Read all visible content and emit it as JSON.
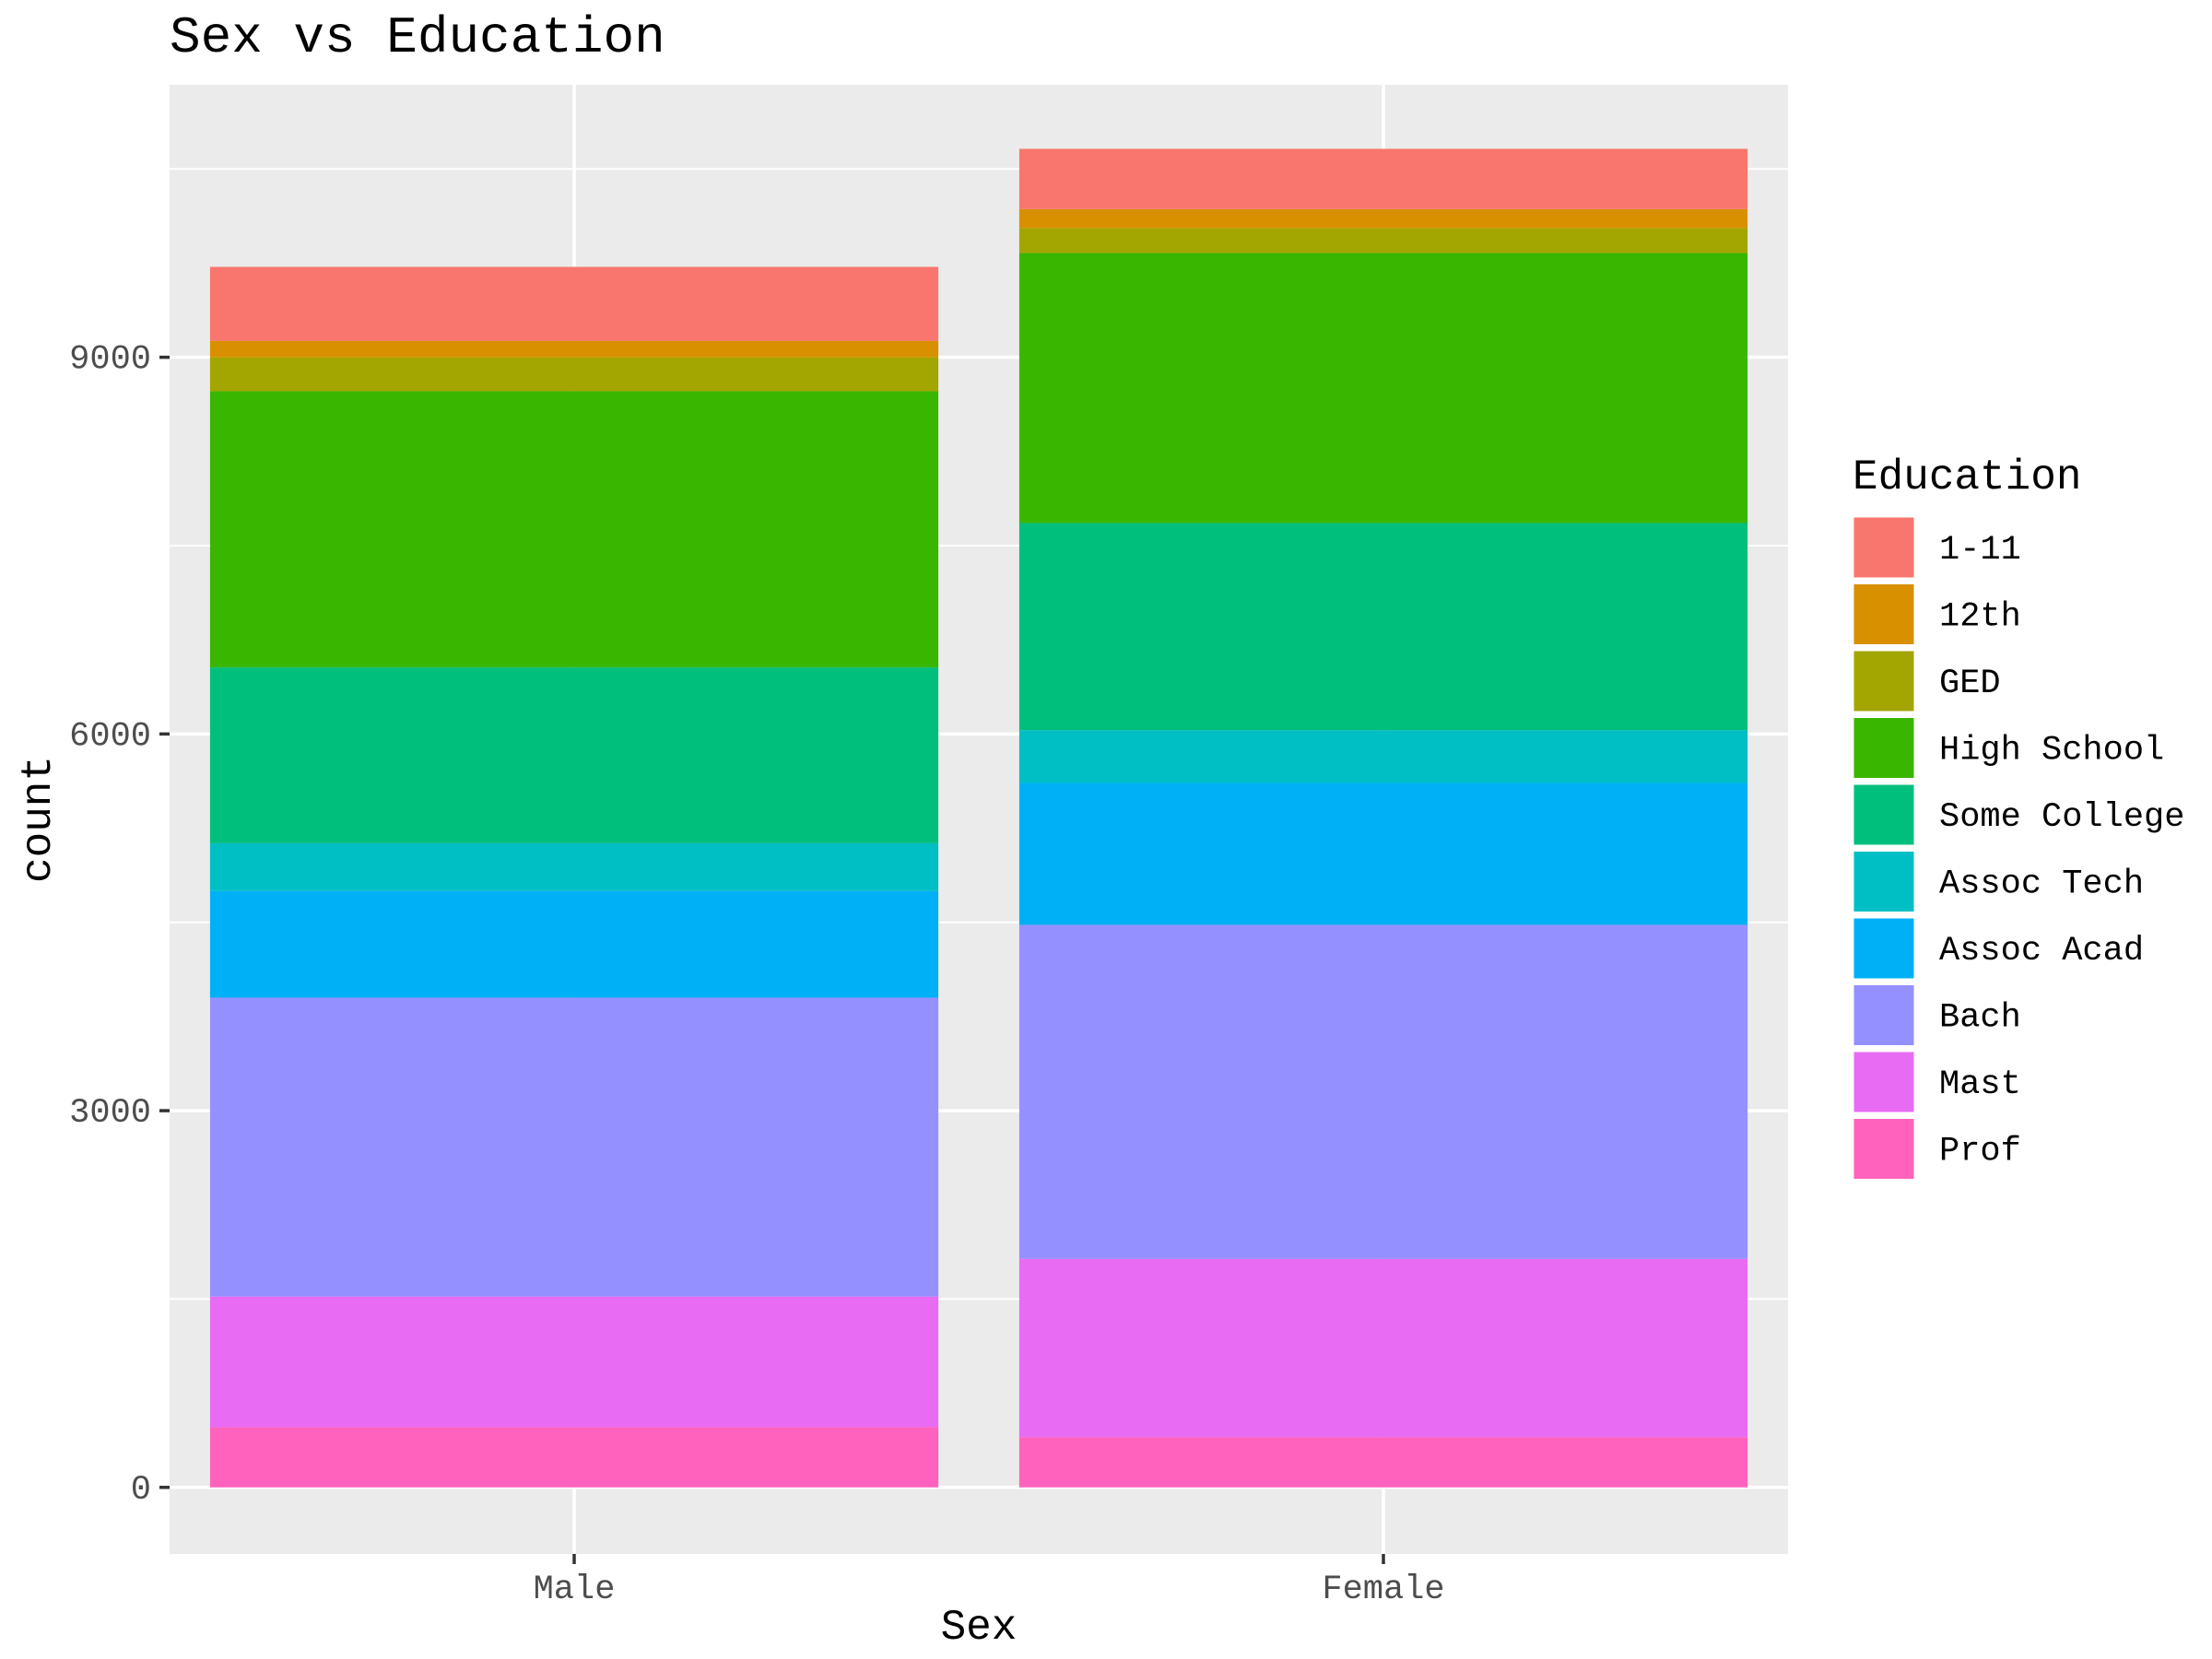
{
  "chart_data": {
    "type": "bar",
    "stacked": true,
    "title": "Sex vs Education",
    "xlabel": "Sex",
    "ylabel": "count",
    "categories": [
      "Male",
      "Female"
    ],
    "y_ticks": [
      0,
      3000,
      6000,
      9000
    ],
    "ylim": [
      -530,
      11170
    ],
    "grid": true,
    "legend_position": "right",
    "legend_title": "Education",
    "series": [
      {
        "name": "1-11",
        "color": "#F8766D",
        "values": [
          590,
          480
        ]
      },
      {
        "name": "12th",
        "color": "#D89000",
        "values": [
          130,
          150
        ]
      },
      {
        "name": "GED",
        "color": "#A3A500",
        "values": [
          270,
          200
        ]
      },
      {
        "name": "High School",
        "color": "#39B600",
        "values": [
          2200,
          2150
        ]
      },
      {
        "name": "Some College",
        "color": "#00BF7D",
        "values": [
          1400,
          1650
        ]
      },
      {
        "name": "Assoc Tech",
        "color": "#00BFC4",
        "values": [
          380,
          420
        ]
      },
      {
        "name": "Assoc Acad",
        "color": "#00B0F6",
        "values": [
          850,
          1130
        ]
      },
      {
        "name": "Bach",
        "color": "#9590FF",
        "values": [
          2380,
          2660
        ]
      },
      {
        "name": "Mast",
        "color": "#E76BF3",
        "values": [
          1040,
          1420
        ]
      },
      {
        "name": "Prof",
        "color": "#FF62BC",
        "values": [
          480,
          400
        ]
      }
    ]
  }
}
